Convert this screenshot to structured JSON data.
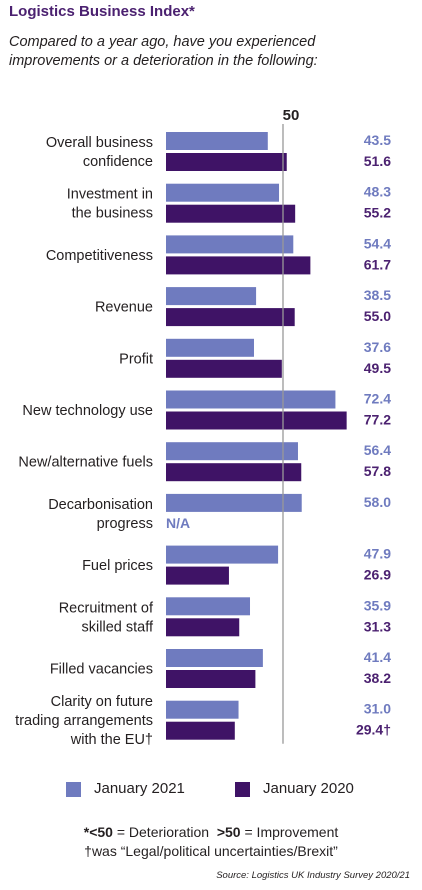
{
  "title": "Logistics Business Index*",
  "subtitle_line1": "Compared to a year ago, have you experienced",
  "subtitle_line2": "improvements or a deterioration in the following:",
  "colors": {
    "jan2021": "#6f7bbf",
    "jan2020": "#3f1366",
    "label2020": "#4b2170",
    "ref_line": "#999999"
  },
  "chart_data": {
    "type": "bar",
    "orientation": "horizontal",
    "reference_line": {
      "value": 50,
      "label": "50"
    },
    "categories": [
      [
        "Overall business",
        "confidence"
      ],
      [
        "Investment in",
        "the business"
      ],
      [
        "Competitiveness"
      ],
      [
        "Revenue"
      ],
      [
        "Profit"
      ],
      [
        "New technology use"
      ],
      [
        "New/alternative fuels"
      ],
      [
        "Decarbonisation",
        "progress"
      ],
      [
        "Fuel prices"
      ],
      [
        "Recruitment of",
        "skilled staff"
      ],
      [
        "Filled vacancies"
      ],
      [
        "Clarity on future",
        "trading arrangements",
        "with the EU†"
      ]
    ],
    "series": [
      {
        "name": "January 2021",
        "values": [
          43.5,
          48.3,
          54.4,
          38.5,
          37.6,
          72.4,
          56.4,
          58.0,
          47.9,
          35.9,
          41.4,
          31.0
        ],
        "labels": [
          "43.5",
          "48.3",
          "54.4",
          "38.5",
          "37.6",
          "72.4",
          "56.4",
          "58.0",
          "47.9",
          "35.9",
          "41.4",
          "31.0"
        ]
      },
      {
        "name": "January 2020",
        "values": [
          51.6,
          55.2,
          61.7,
          55.0,
          49.5,
          77.2,
          57.8,
          null,
          26.9,
          31.3,
          38.2,
          29.4
        ],
        "labels": [
          "51.6",
          "55.2",
          "61.7",
          "55.0",
          "49.5",
          "77.2",
          "57.8",
          "N/A",
          "26.9",
          "31.3",
          "38.2",
          "29.4†"
        ]
      }
    ],
    "xlim": [
      0,
      80
    ]
  },
  "legend": {
    "item1": "January 2021",
    "item2": "January 2020"
  },
  "footnote": {
    "a_sym": "*<50",
    "a_text": " = Deterioration  ",
    "b_sym": ">50",
    "b_text": " = Improvement",
    "line2": "†was “Legal/political uncertainties/Brexit”"
  },
  "source": "Source: Logistics UK Industry Survey 2020/21"
}
